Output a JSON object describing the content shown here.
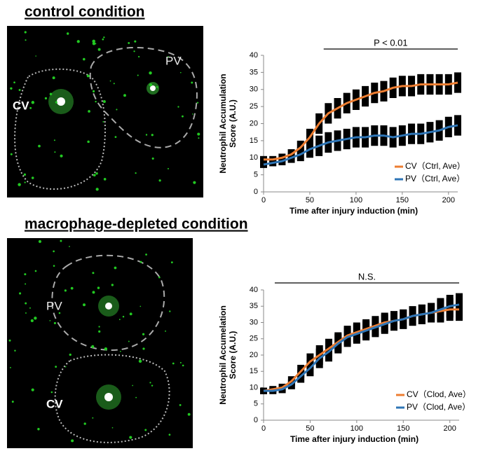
{
  "sections": [
    {
      "title": "control condition",
      "image_labels": [
        "CV",
        "PV"
      ]
    },
    {
      "title": "macrophage-depleted condition",
      "image_labels": [
        "PV",
        "CV"
      ]
    }
  ],
  "chart_data": [
    {
      "type": "line",
      "annotation": "P < 0.01",
      "ylabel": "Neutrophil Accumulation Score (A.U.)",
      "xlabel": "Time after injury induction (min)",
      "x": [
        0,
        10,
        20,
        30,
        40,
        50,
        60,
        70,
        80,
        90,
        100,
        110,
        120,
        130,
        140,
        150,
        160,
        170,
        180,
        190,
        200,
        210
      ],
      "series": [
        {
          "name": "CV（Ctrl, Ave）",
          "color": "#ed7d31",
          "values": [
            9.5,
            9.5,
            10,
            11,
            13,
            16,
            20,
            23,
            24.5,
            26,
            27,
            28,
            29,
            29.5,
            30.5,
            31,
            31,
            31.5,
            31.5,
            31.5,
            31.5,
            32
          ],
          "errors": [
            1,
            1,
            1.2,
            1.5,
            2,
            2.5,
            3,
            3,
            3,
            3,
            3,
            3,
            3,
            3,
            3,
            3,
            3,
            3,
            3,
            3,
            3,
            3
          ]
        },
        {
          "name": "PV（Ctrl, Ave）",
          "color": "#2e75b6",
          "values": [
            8,
            8.5,
            9,
            10,
            11,
            12.5,
            13.5,
            14.5,
            15,
            15.5,
            16,
            16,
            16.5,
            16.5,
            16,
            16.5,
            17,
            17,
            17.5,
            18,
            19,
            19.5
          ],
          "errors": [
            1,
            1,
            1.2,
            1.5,
            2,
            2.5,
            3,
            3,
            3,
            3,
            3,
            3,
            3,
            3,
            3,
            3,
            3,
            3,
            3,
            3,
            3,
            3
          ]
        }
      ],
      "xlim": [
        0,
        210
      ],
      "xticks": [
        0,
        50,
        100,
        150,
        200
      ],
      "ylim": [
        0,
        40
      ],
      "yticks": [
        0,
        5,
        10,
        15,
        20,
        25,
        30,
        35,
        40
      ],
      "legend": "lower right"
    },
    {
      "type": "line",
      "annotation": "N.S.",
      "ylabel": "Neutrophil Accumelation Score (A.U.)",
      "xlabel": "Time after injury induction (min)",
      "x": [
        0,
        10,
        20,
        30,
        40,
        50,
        60,
        70,
        80,
        90,
        100,
        110,
        120,
        130,
        140,
        150,
        160,
        170,
        180,
        190,
        200,
        210
      ],
      "series": [
        {
          "name": "CV（Clod, Ave）",
          "color": "#ed7d31",
          "values": [
            9,
            9.5,
            10,
            12,
            15,
            18,
            20,
            22,
            24,
            26,
            27,
            28,
            29,
            30,
            30.5,
            31,
            32,
            32.5,
            33,
            33.5,
            34,
            34
          ],
          "errors": [
            1,
            1,
            1.2,
            1.5,
            2,
            2.5,
            3,
            3,
            3,
            3,
            3,
            3,
            3,
            3,
            3,
            3,
            3,
            3,
            3,
            3.5,
            3.5,
            3.5
          ]
        },
        {
          "name": "PV（Clod, Ave）",
          "color": "#2e75b6",
          "values": [
            9,
            9,
            9.5,
            11,
            13.5,
            16,
            19,
            21,
            23.5,
            25.5,
            26.5,
            27.5,
            28.5,
            29.5,
            30.5,
            31,
            32,
            32.5,
            33,
            34,
            35,
            35.5
          ],
          "errors": [
            1,
            1,
            1.2,
            1.5,
            2,
            2.5,
            3,
            3,
            3,
            3,
            3,
            3,
            3,
            3,
            3,
            3,
            3,
            3,
            3,
            3.5,
            3.5,
            3.5
          ]
        }
      ],
      "xlim": [
        0,
        210
      ],
      "xticks": [
        0,
        50,
        100,
        150,
        200
      ],
      "ylim": [
        0,
        40
      ],
      "yticks": [
        0,
        5,
        10,
        15,
        20,
        25,
        30,
        35,
        40
      ],
      "legend": "lower right"
    }
  ]
}
